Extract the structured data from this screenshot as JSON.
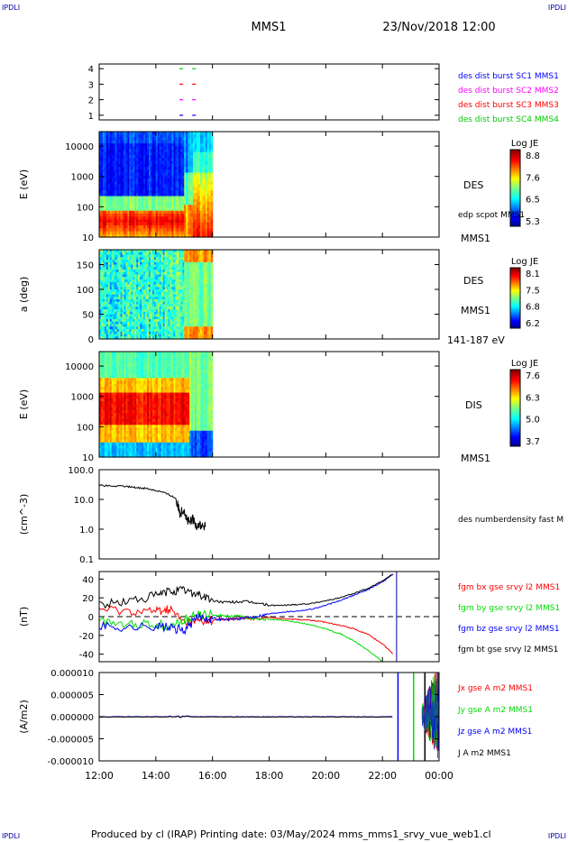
{
  "header": {
    "corner_left": "IPDLI",
    "corner_right": "IPDLI",
    "mission": "MMS1",
    "datetime": "23/Nov/2018 12:00"
  },
  "footer": {
    "text": "Produced by cl (IRAP)   Printing date: 03/May/2024   mms_mms1_srvy_vue_web1.cl",
    "corner_left": "IPDLI",
    "corner_right": "IPDLI"
  },
  "time_axis": {
    "ticks": [
      "12:00",
      "14:00",
      "16:00",
      "18:00",
      "20:00",
      "22:00",
      "00:00"
    ],
    "range_hours": [
      12,
      24
    ]
  },
  "colors": {
    "blue": "#0000ff",
    "magenta": "#ff00ff",
    "red": "#ff0000",
    "green": "#00dd00",
    "black": "#000000"
  },
  "chart_data": [
    {
      "type": "scatter",
      "panel": "burst-availability",
      "yticks": [
        "1",
        "2",
        "3",
        "4"
      ],
      "ylim": [
        0.7,
        4.3
      ],
      "legend": [
        {
          "label": "des dist burst SC1 MMS1",
          "color": "#0000ff"
        },
        {
          "label": "des dist burst SC2 MMS2",
          "color": "#ff00ff"
        },
        {
          "label": "des dist burst SC3 MMS3",
          "color": "#ff0000"
        },
        {
          "label": "des dist burst SC4 MMS4",
          "color": "#00cc00"
        }
      ],
      "series": [
        {
          "sc": 1,
          "x": [
            14.9,
            15.35
          ],
          "color": "#0000ff"
        },
        {
          "sc": 2,
          "x": [
            14.9,
            15.35
          ],
          "color": "#ff00ff"
        },
        {
          "sc": 3,
          "x": [
            14.9,
            15.35
          ],
          "color": "#ff0000"
        },
        {
          "sc": 4,
          "x": [
            14.9,
            15.35
          ],
          "color": "#00cc00"
        }
      ]
    },
    {
      "type": "heatmap",
      "panel": "des-energy",
      "ylabel": "E (eV)",
      "yscale": "log",
      "ylim": [
        10,
        30000
      ],
      "yticks": [
        "10",
        "100",
        "1000",
        "10000"
      ],
      "ytick_values": [
        10,
        100,
        1000,
        10000
      ],
      "data_x_range": [
        12,
        16
      ],
      "colorbar": {
        "title": "Log JE",
        "ticks": [
          "8.8",
          "7.6",
          "6.5",
          "5.3"
        ]
      },
      "labels": [
        "DES",
        "edp scpot MMS1",
        "MMS1"
      ]
    },
    {
      "type": "heatmap",
      "panel": "des-pitch-angle",
      "ylabel": "a (deg)",
      "ylim": [
        0,
        180
      ],
      "yticks": [
        "0",
        "50",
        "100",
        "150"
      ],
      "ytick_values": [
        0,
        50,
        100,
        150
      ],
      "data_x_range": [
        12,
        16
      ],
      "colorbar": {
        "title": "Log JE",
        "ticks": [
          "8.1",
          "7.5",
          "6.8",
          "6.2"
        ]
      },
      "labels": [
        "DES",
        "MMS1",
        "141-187 eV"
      ]
    },
    {
      "type": "heatmap",
      "panel": "dis-energy",
      "ylabel": "E (eV)",
      "yscale": "log",
      "ylim": [
        10,
        30000
      ],
      "yticks": [
        "10",
        "100",
        "1000",
        "10000"
      ],
      "ytick_values": [
        10,
        100,
        1000,
        10000
      ],
      "data_x_range": [
        12,
        16
      ],
      "colorbar": {
        "title": "Log JE",
        "ticks": [
          "7.6",
          "6.3",
          "5.0",
          "3.7"
        ]
      },
      "labels": [
        "DIS",
        "MMS1"
      ]
    },
    {
      "type": "line",
      "panel": "density",
      "ylabel": "(cm^-3)",
      "yscale": "log",
      "ylim": [
        0.1,
        100
      ],
      "yticks": [
        "0.1",
        "1.0",
        "10.0",
        "100.0"
      ],
      "ytick_values": [
        0.1,
        1,
        10,
        100
      ],
      "legend": [
        {
          "label": "des numberdensity fast M",
          "color": "#000000"
        }
      ],
      "x": [
        12.0,
        12.5,
        13.0,
        13.3,
        13.6,
        13.9,
        14.2,
        14.5,
        14.7,
        14.85,
        15.0,
        15.1,
        15.2,
        15.3,
        15.4,
        15.5,
        15.6,
        15.75
      ],
      "y": [
        30,
        28,
        27,
        25,
        24,
        21,
        18,
        14,
        11,
        3.5,
        5,
        2.0,
        1.6,
        2.2,
        1.4,
        1.5,
        1.3,
        1.2
      ]
    },
    {
      "type": "line",
      "panel": "magnetic-field",
      "ylabel": "(nT)",
      "ylim": [
        -48,
        48
      ],
      "yticks": [
        "-40",
        "-20",
        "0",
        "20",
        "40"
      ],
      "ytick_values": [
        -40,
        -20,
        0,
        20,
        40
      ],
      "legend": [
        {
          "label": "fgm bx gse srvy l2 MMS1",
          "color": "#ff0000"
        },
        {
          "label": "fgm by gse srvy l2 MMS1",
          "color": "#00dd00"
        },
        {
          "label": "fgm bz gse srvy l2 MMS1",
          "color": "#0000ff"
        },
        {
          "label": "fgm bt gse srvy l2 MMS1",
          "color": "#000000"
        }
      ],
      "x": [
        12.0,
        13.0,
        14.0,
        14.5,
        15.0,
        15.5,
        16.0,
        16.5,
        17.0,
        17.5,
        18.0,
        18.5,
        19.0,
        19.5,
        20.0,
        20.5,
        21.0,
        21.5,
        22.0,
        22.4
      ],
      "series": [
        {
          "name": "bt",
          "color": "#000000",
          "y": [
            12,
            16,
            22,
            27,
            28,
            24,
            17,
            15,
            16,
            15,
            12,
            12,
            13,
            14,
            17,
            20,
            25,
            30,
            38,
            46
          ]
        },
        {
          "name": "bz",
          "color": "#0000ff",
          "y": [
            -10,
            -12,
            -10,
            -12,
            -15,
            0,
            -2,
            -3,
            -2,
            0,
            3,
            5,
            6,
            8,
            12,
            17,
            23,
            29,
            37,
            46
          ]
        },
        {
          "name": "by",
          "color": "#00dd00",
          "y": [
            -5,
            -8,
            -8,
            -10,
            -4,
            2,
            2,
            1,
            0,
            -2,
            -3,
            -4,
            -6,
            -9,
            -13,
            -18,
            -26,
            -36,
            -48,
            -60
          ]
        },
        {
          "name": "bx",
          "color": "#ff0000",
          "y": [
            8,
            6,
            6,
            8,
            -6,
            -5,
            -4,
            -3,
            -2,
            -2,
            -1,
            -2,
            -3,
            -4,
            -6,
            -9,
            -13,
            -19,
            -29,
            -40
          ]
        }
      ],
      "vline_x": 22.5
    },
    {
      "type": "line",
      "panel": "current-density",
      "ylabel": "(A/m2)",
      "ylim": [
        -1e-05,
        1e-05
      ],
      "yticks": [
        "-0.000010",
        "-0.000005",
        "0.000000",
        "0.000005",
        "0.000010"
      ],
      "ytick_values": [
        -1e-05,
        -5e-06,
        0,
        5e-06,
        1e-05
      ],
      "legend": [
        {
          "label": "Jx gse A m2 MMS1",
          "color": "#ff0000"
        },
        {
          "label": "Jy gse A m2 MMS1",
          "color": "#00dd00"
        },
        {
          "label": "Jz gse A m2 MMS1",
          "color": "#0000ff"
        },
        {
          "label": "J A m2 MMS1",
          "color": "#000000"
        }
      ],
      "spike_x": [
        22.55,
        23.1,
        23.5
      ]
    }
  ]
}
